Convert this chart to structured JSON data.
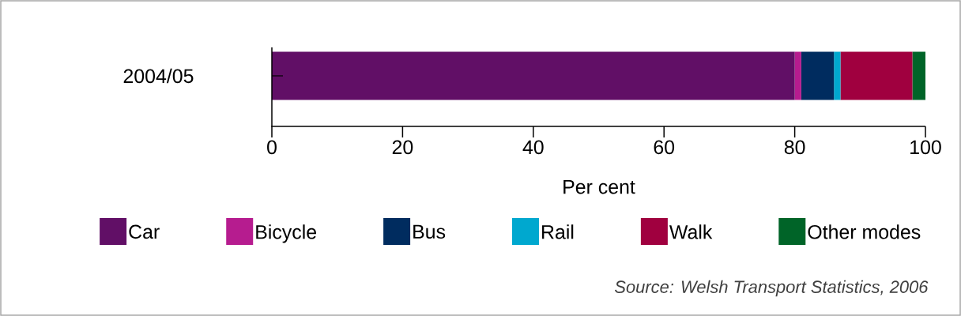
{
  "chart_data": {
    "type": "bar",
    "orientation": "horizontal",
    "stacked": true,
    "categories": [
      "2004/05"
    ],
    "series": [
      {
        "name": "Car",
        "color": "#610f66",
        "values": [
          80
        ]
      },
      {
        "name": "Bicycle",
        "color": "#b61c8f",
        "values": [
          1
        ]
      },
      {
        "name": "Bus",
        "color": "#002c5f",
        "values": [
          5
        ]
      },
      {
        "name": "Rail",
        "color": "#00a8cf",
        "values": [
          1
        ]
      },
      {
        "name": "Walk",
        "color": "#a0003f",
        "values": [
          11
        ]
      },
      {
        "name": "Other modes",
        "color": "#006428",
        "values": [
          2
        ]
      }
    ],
    "xlim": [
      0,
      100
    ],
    "xticks": [
      0,
      20,
      40,
      60,
      80,
      100
    ],
    "xlabel": "Per cent",
    "legend": "bottom",
    "grid": false,
    "annotations": [
      "Source: Welsh Transport Statistics, 2006"
    ]
  }
}
